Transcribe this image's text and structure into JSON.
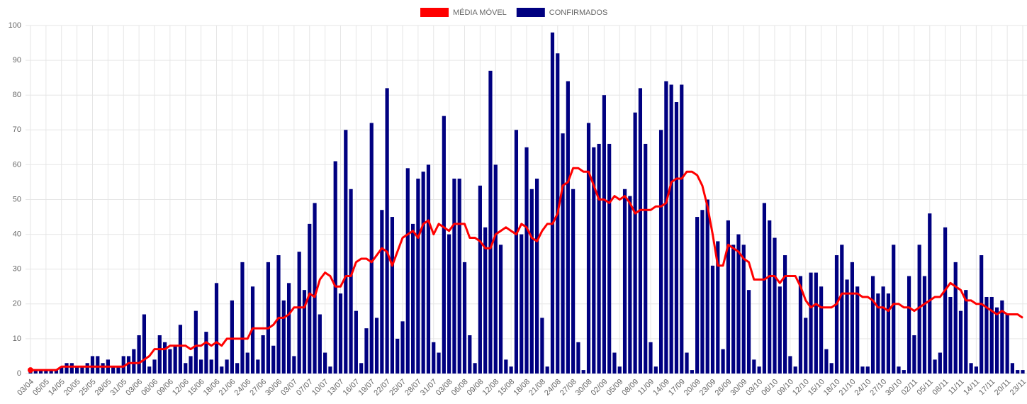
{
  "chart_data": {
    "type": "bar",
    "categories": [
      "03/04",
      null,
      null,
      "05/05",
      null,
      null,
      "14/05",
      null,
      null,
      "20/05",
      null,
      null,
      "25/05",
      null,
      null,
      "28/05",
      null,
      null,
      "31/05",
      null,
      null,
      "03/06",
      null,
      null,
      "06/06",
      null,
      null,
      "09/06",
      null,
      null,
      "12/06",
      null,
      null,
      "15/06",
      null,
      null,
      "18/06",
      null,
      null,
      "21/06",
      null,
      null,
      "24/06",
      null,
      null,
      "27/06",
      null,
      null,
      "30/06",
      null,
      null,
      "03/07",
      null,
      null,
      "07/07",
      null,
      null,
      "10/07",
      null,
      null,
      "13/07",
      null,
      null,
      "16/07",
      null,
      null,
      "19/07",
      null,
      null,
      "22/07",
      null,
      null,
      "25/07",
      null,
      null,
      "28/07",
      null,
      null,
      "31/07",
      null,
      null,
      "03/08",
      null,
      null,
      "06/08",
      null,
      null,
      "09/08",
      null,
      null,
      "12/08",
      null,
      null,
      "15/08",
      null,
      null,
      "18/08",
      null,
      null,
      "21/08",
      null,
      null,
      "24/08",
      null,
      null,
      "27/08",
      null,
      null,
      "30/08",
      null,
      null,
      "02/09",
      null,
      null,
      "05/09",
      null,
      null,
      "08/09",
      null,
      null,
      "11/09",
      null,
      null,
      "14/09",
      null,
      null,
      "17/09",
      null,
      null,
      "20/09",
      null,
      null,
      "23/09",
      null,
      null,
      "26/09",
      null,
      null,
      "30/09",
      null,
      null,
      "03/10",
      null,
      null,
      "06/10",
      null,
      null,
      "09/10",
      null,
      null,
      "12/10",
      null,
      null,
      "15/10",
      null,
      null,
      "18/10",
      null,
      null,
      "21/10",
      null,
      null,
      "24/10",
      null,
      null,
      "27/10",
      null,
      null,
      "30/10",
      null,
      null,
      "02/11",
      null,
      null,
      "05/11",
      null,
      null,
      "08/11",
      null,
      null,
      "11/11",
      null,
      null,
      "14/11",
      null,
      null,
      "17/11",
      null,
      null,
      "20/11",
      null,
      null,
      "23/11"
    ],
    "series": [
      {
        "name": "MÉDIA MÓVEL",
        "type": "line",
        "color": "#ff0000",
        "values": [
          1,
          1,
          1,
          1,
          1,
          1,
          2,
          2,
          2,
          2,
          2,
          2,
          2,
          2,
          2,
          2,
          2,
          2,
          2,
          3,
          3,
          3,
          4,
          5,
          7,
          7,
          7,
          8,
          8,
          8,
          8,
          7,
          8,
          8,
          9,
          8,
          9,
          8,
          10,
          10,
          10,
          10,
          10,
          13,
          13,
          13,
          13,
          14,
          16,
          16,
          17,
          19,
          19,
          19,
          23,
          22,
          27,
          29,
          28,
          25,
          25,
          28,
          28,
          32,
          33,
          33,
          32,
          34,
          36,
          35,
          31,
          35,
          39,
          40,
          41,
          39,
          43,
          44,
          40,
          43,
          42,
          41,
          43,
          43,
          43,
          39,
          39,
          38,
          36,
          36,
          40,
          41,
          42,
          41,
          40,
          43,
          42,
          39,
          38,
          41,
          43,
          43,
          46,
          54,
          55,
          59,
          59,
          58,
          58,
          54,
          50,
          50,
          49,
          51,
          50,
          51,
          49,
          46,
          47,
          47,
          47,
          48,
          48,
          49,
          55,
          56,
          56,
          58,
          58,
          57,
          54,
          48,
          40,
          31,
          31,
          37,
          36,
          35,
          33,
          32,
          27,
          27,
          27,
          28,
          28,
          26,
          28,
          28,
          28,
          25,
          21,
          19,
          20,
          19,
          19,
          19,
          20,
          23,
          23,
          23,
          23,
          22,
          22,
          21,
          19,
          19,
          18,
          20,
          20,
          19,
          19,
          18,
          19,
          20,
          21,
          22,
          22,
          24,
          26,
          25,
          24,
          21,
          21,
          20,
          20,
          19,
          18,
          17,
          18,
          17,
          17,
          17,
          16
        ]
      },
      {
        "name": "CONFIRMADOS",
        "type": "bar",
        "color": "#000080",
        "values": [
          1,
          1,
          1,
          1,
          1,
          1,
          2,
          3,
          3,
          2,
          2,
          3,
          5,
          5,
          3,
          4,
          2,
          2,
          5,
          5,
          7,
          11,
          17,
          2,
          4,
          11,
          9,
          7,
          8,
          14,
          3,
          5,
          18,
          4,
          12,
          4,
          26,
          2,
          4,
          21,
          3,
          32,
          6,
          25,
          4,
          11,
          32,
          8,
          34,
          21,
          26,
          5,
          35,
          24,
          43,
          49,
          17,
          6,
          2,
          61,
          23,
          70,
          53,
          18,
          3,
          13,
          72,
          16,
          47,
          82,
          45,
          10,
          15,
          59,
          43,
          56,
          58,
          60,
          9,
          6,
          74,
          40,
          56,
          56,
          32,
          11,
          3,
          54,
          42,
          87,
          60,
          37,
          4,
          2,
          70,
          40,
          65,
          53,
          56,
          16,
          2,
          98,
          92,
          69,
          84,
          53,
          9,
          1,
          72,
          65,
          66,
          80,
          66,
          6,
          2,
          53,
          51,
          75,
          82,
          66,
          9,
          2,
          70,
          84,
          83,
          78,
          83,
          6,
          1,
          45,
          47,
          50,
          31,
          38,
          7,
          44,
          37,
          40,
          37,
          24,
          4,
          2,
          49,
          44,
          39,
          25,
          34,
          5,
          2,
          28,
          16,
          29,
          29,
          25,
          7,
          3,
          34,
          37,
          27,
          32,
          25,
          2,
          2,
          28,
          23,
          25,
          23,
          37,
          2,
          1,
          28,
          11,
          37,
          28,
          46,
          4,
          6,
          42,
          22,
          32,
          18,
          24,
          3,
          2,
          34,
          22,
          22,
          19,
          21,
          17,
          3,
          1,
          1
        ]
      }
    ],
    "ylim": [
      0,
      100
    ],
    "yticks": [
      0,
      10,
      20,
      30,
      40,
      50,
      60,
      70,
      80,
      90,
      100
    ],
    "grid": true,
    "legend": "top"
  }
}
